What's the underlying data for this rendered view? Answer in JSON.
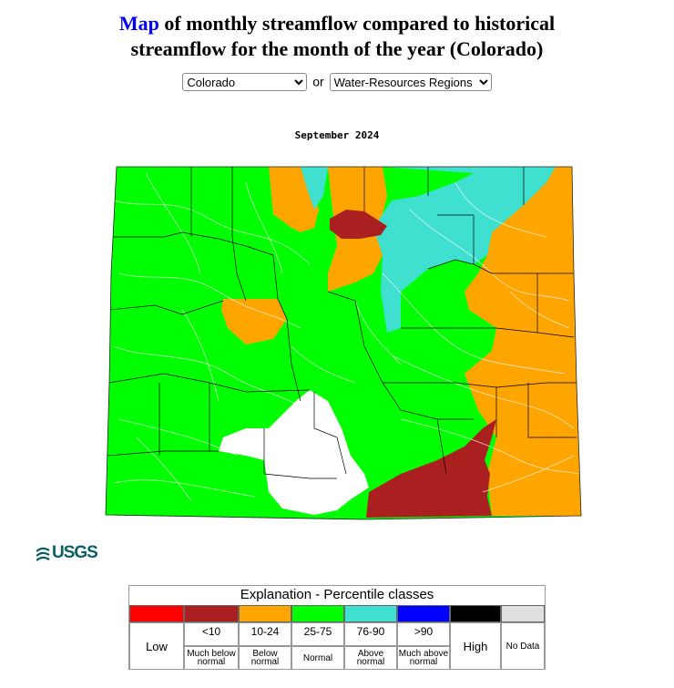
{
  "page": {
    "title_link": "Map",
    "title_rest_line1": " of monthly streamflow compared to historical",
    "title_line2": "streamflow for the month of the year (Colorado)",
    "connector": "or",
    "state_select": {
      "selected": "Colorado"
    },
    "region_select": {
      "selected": "Water-Resources Regions"
    },
    "date_label": "September 2024"
  },
  "logo": {
    "text": "USGS"
  },
  "legend": {
    "title": "Explanation - Percentile classes",
    "classes": [
      {
        "code": "Low",
        "label": "",
        "color": "#ff0000"
      },
      {
        "code": "<10",
        "label": "Much below normal",
        "color": "#b22222"
      },
      {
        "code": "10-24",
        "label": "Below normal",
        "color": "#ffa500"
      },
      {
        "code": "25-75",
        "label": "Normal",
        "color": "#00ff00"
      },
      {
        "code": "76-90",
        "label": "Above normal",
        "color": "#40e0d0"
      },
      {
        "code": ">90",
        "label": "Much above normal",
        "color": "#0000ff"
      },
      {
        "code": "High",
        "label": "",
        "color": "#000000"
      },
      {
        "code": "No Data",
        "label": "",
        "color": "#e0e0e0"
      }
    ],
    "desc_lines": {
      "much_below": [
        "Much below",
        "normal"
      ],
      "below": [
        "Below",
        "normal"
      ],
      "above": [
        "Above",
        "normal"
      ],
      "much_above": [
        "Much above",
        "normal"
      ]
    }
  },
  "map": {
    "state": "Colorado",
    "classes_present": [
      "much-below-normal",
      "below-normal",
      "normal",
      "above-normal",
      "no-data"
    ]
  }
}
